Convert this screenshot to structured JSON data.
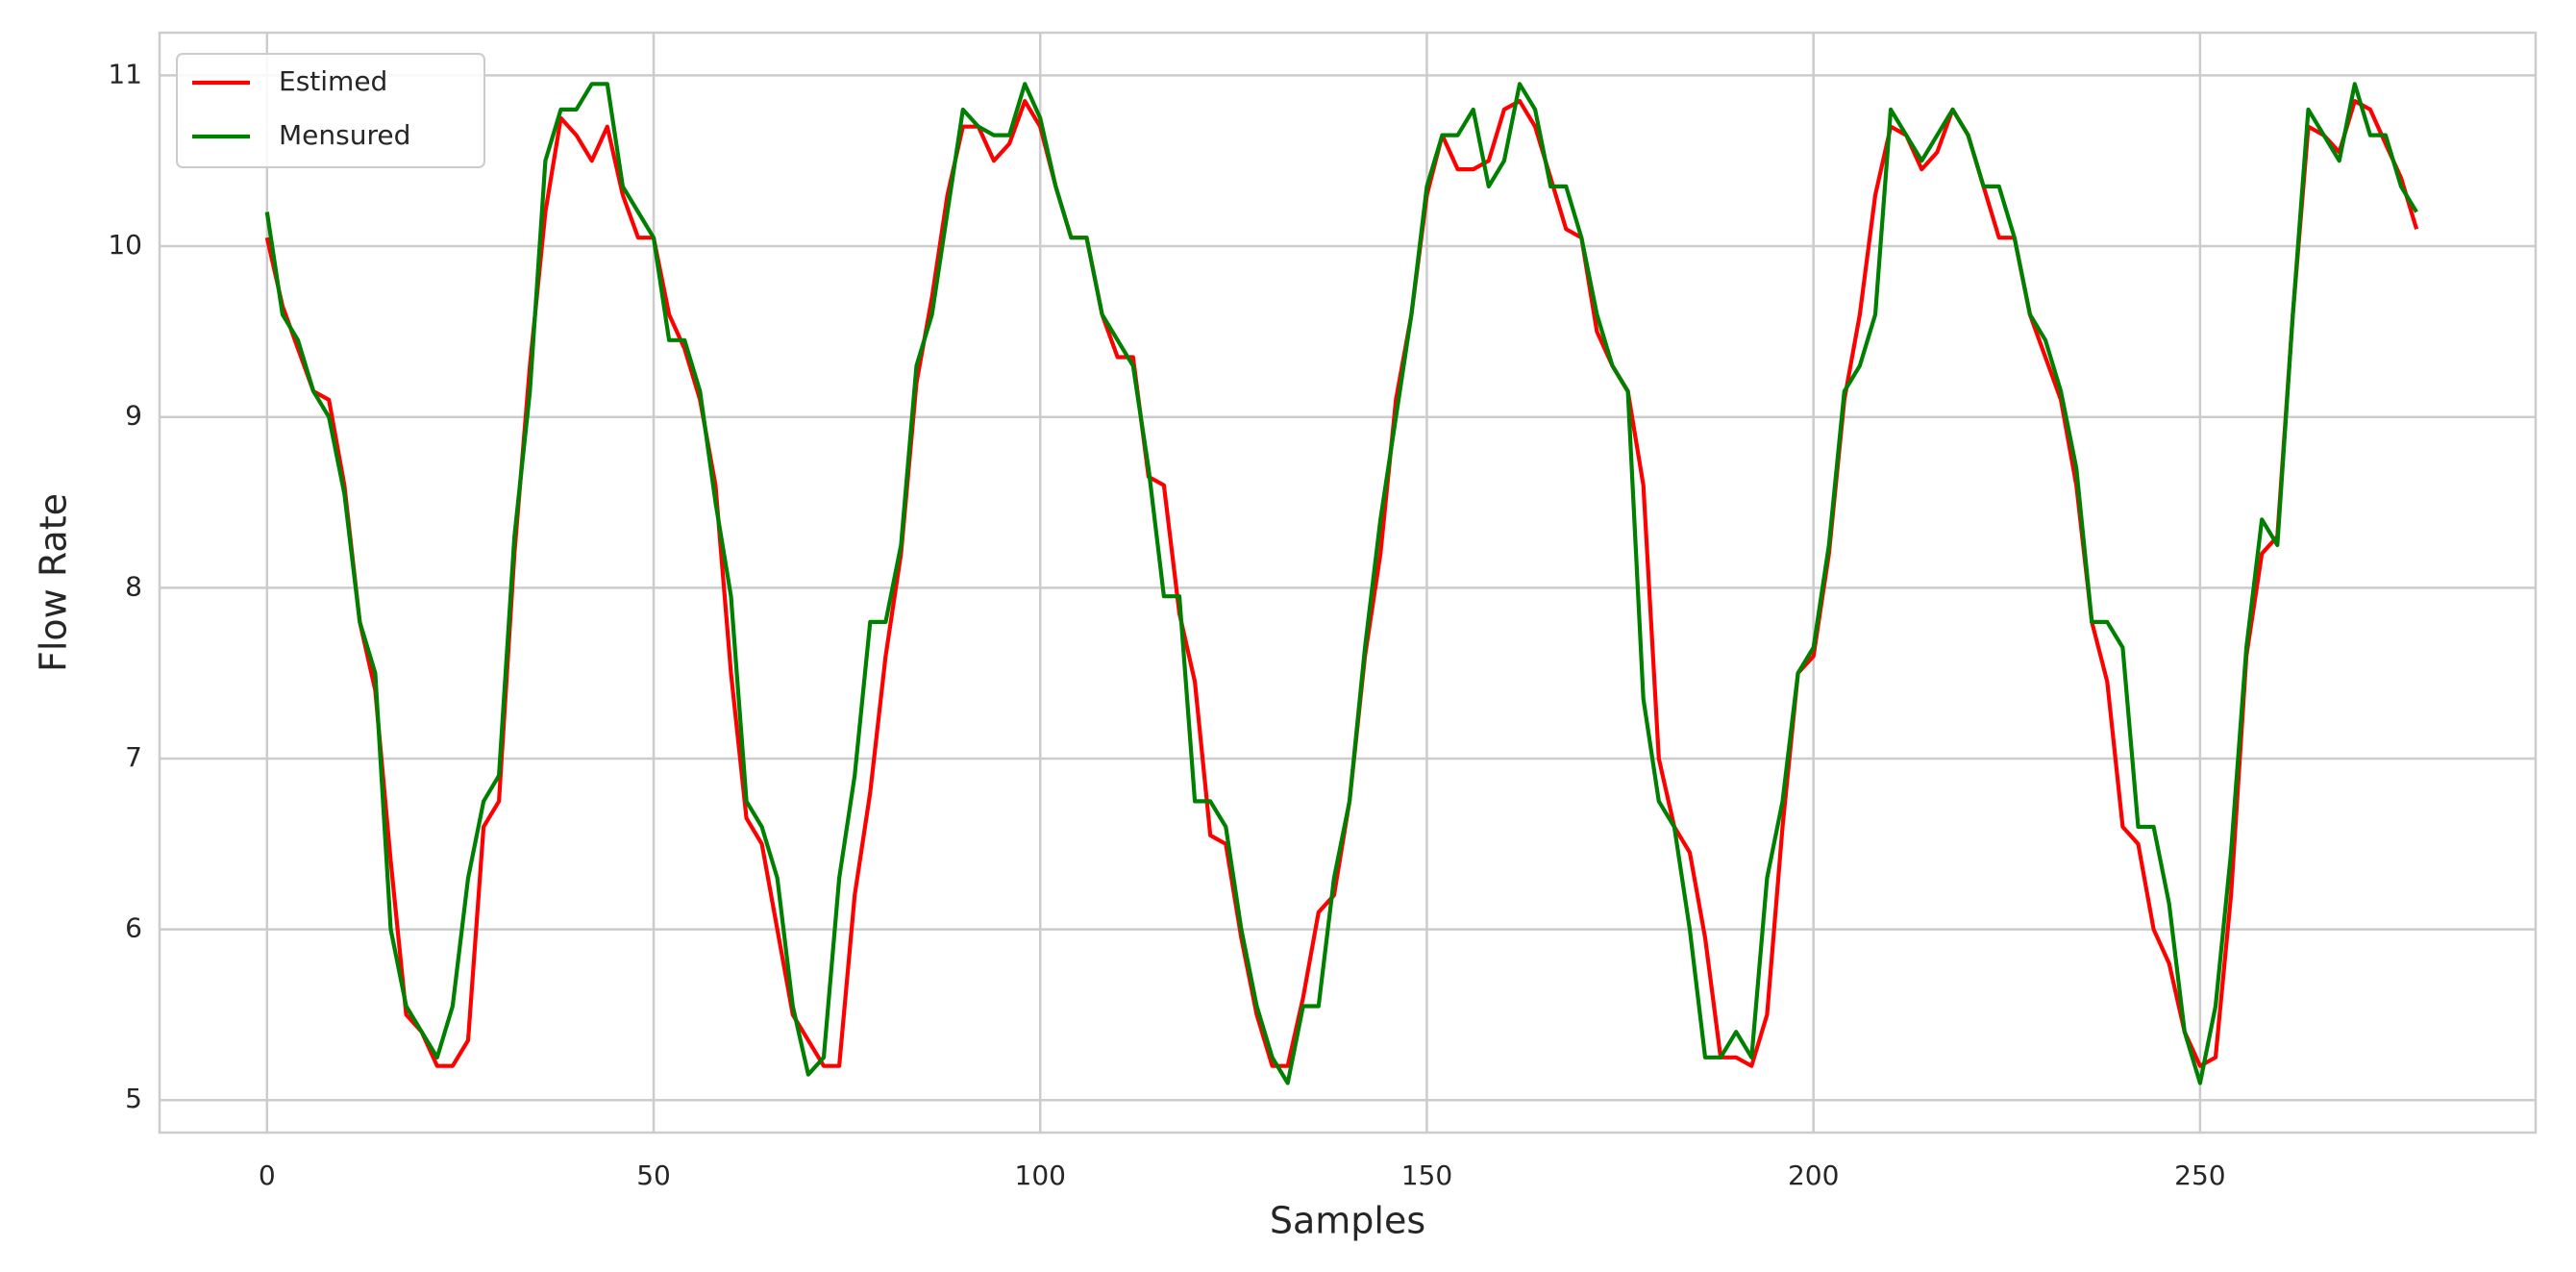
{
  "chart_data": {
    "type": "line",
    "xlabel": "Samples",
    "ylabel": "Flow Rate",
    "x": [
      0,
      2,
      4,
      6,
      8,
      10,
      12,
      14,
      16,
      18,
      20,
      22,
      24,
      26,
      28,
      30,
      32,
      34,
      36,
      38,
      40,
      42,
      44,
      46,
      48,
      50,
      52,
      54,
      56,
      58,
      60,
      62,
      64,
      66,
      68,
      70,
      72,
      74,
      76,
      78,
      80,
      82,
      84,
      86,
      88,
      90,
      92,
      94,
      96,
      98,
      100,
      102,
      104,
      106,
      108,
      110,
      112,
      114,
      116,
      118,
      120,
      122,
      124,
      126,
      128,
      130,
      132,
      134,
      136,
      138,
      140,
      142,
      144,
      146,
      148,
      150,
      152,
      154,
      156,
      158,
      160,
      162,
      164,
      166,
      168,
      170,
      172,
      174,
      176,
      178,
      180,
      182,
      184,
      186,
      188,
      190,
      192,
      194,
      196,
      198,
      200,
      202,
      204,
      206,
      208,
      210,
      212,
      214,
      216,
      218,
      220,
      222,
      224,
      226,
      228,
      230,
      232,
      234,
      236,
      238,
      240,
      242,
      244,
      246,
      248,
      250,
      252,
      254,
      256,
      258,
      260,
      262,
      264,
      266,
      268,
      270,
      272,
      274,
      276,
      278
    ],
    "series": [
      {
        "name": "Estimed",
        "color": "#ff0000",
        "values": [
          10.05,
          9.65,
          9.4,
          9.15,
          9.1,
          8.6,
          7.8,
          7.4,
          6.4,
          5.5,
          5.4,
          5.2,
          5.2,
          5.35,
          6.6,
          6.75,
          8.2,
          9.3,
          10.2,
          10.75,
          10.65,
          10.5,
          10.7,
          10.3,
          10.05,
          10.05,
          9.6,
          9.4,
          9.1,
          8.6,
          7.5,
          6.65,
          6.5,
          6.0,
          5.5,
          5.35,
          5.2,
          5.2,
          6.2,
          6.8,
          7.6,
          8.2,
          9.2,
          9.7,
          10.3,
          10.7,
          10.7,
          10.5,
          10.6,
          10.85,
          10.7,
          10.35,
          10.05,
          10.05,
          9.6,
          9.35,
          9.35,
          8.65,
          8.6,
          7.85,
          7.45,
          6.55,
          6.5,
          5.95,
          5.5,
          5.2,
          5.2,
          5.6,
          6.1,
          6.2,
          6.75,
          7.6,
          8.2,
          9.1,
          9.6,
          10.3,
          10.65,
          10.45,
          10.45,
          10.5,
          10.8,
          10.85,
          10.7,
          10.4,
          10.1,
          10.05,
          9.5,
          9.3,
          9.15,
          8.6,
          7.0,
          6.6,
          6.45,
          5.95,
          5.25,
          5.25,
          5.2,
          5.5,
          6.6,
          7.5,
          7.6,
          8.2,
          9.1,
          9.6,
          10.3,
          10.7,
          10.65,
          10.45,
          10.55,
          10.8,
          10.65,
          10.35,
          10.05,
          10.05,
          9.6,
          9.35,
          9.1,
          8.6,
          7.8,
          7.45,
          6.6,
          6.5,
          6.0,
          5.8,
          5.4,
          5.2,
          5.25,
          6.2,
          7.6,
          8.2,
          8.3,
          9.6,
          10.7,
          10.65,
          10.55,
          10.85,
          10.8,
          10.6,
          10.4,
          10.1
        ]
      },
      {
        "name": "Mensured",
        "color": "#008000",
        "values": [
          10.2,
          9.6,
          9.45,
          9.15,
          9.0,
          8.55,
          7.8,
          7.5,
          6.0,
          5.55,
          5.4,
          5.25,
          5.55,
          6.3,
          6.75,
          6.9,
          8.3,
          9.15,
          10.5,
          10.8,
          10.8,
          10.95,
          10.95,
          10.35,
          10.2,
          10.05,
          9.45,
          9.45,
          9.15,
          8.5,
          7.95,
          6.75,
          6.6,
          6.3,
          5.55,
          5.15,
          5.25,
          6.3,
          6.9,
          7.8,
          7.8,
          8.25,
          9.3,
          9.6,
          10.2,
          10.8,
          10.7,
          10.65,
          10.65,
          10.95,
          10.75,
          10.35,
          10.05,
          10.05,
          9.6,
          9.45,
          9.3,
          8.7,
          7.95,
          7.95,
          6.75,
          6.75,
          6.6,
          6.0,
          5.55,
          5.25,
          5.1,
          5.55,
          5.55,
          6.3,
          6.75,
          7.65,
          8.4,
          9.0,
          9.6,
          10.35,
          10.65,
          10.65,
          10.8,
          10.35,
          10.5,
          10.95,
          10.8,
          10.35,
          10.35,
          10.05,
          9.6,
          9.3,
          9.15,
          7.35,
          6.75,
          6.6,
          6.0,
          5.25,
          5.25,
          5.4,
          5.25,
          6.3,
          6.75,
          7.5,
          7.65,
          8.25,
          9.15,
          9.3,
          9.6,
          10.8,
          10.65,
          10.5,
          10.65,
          10.8,
          10.65,
          10.35,
          10.35,
          10.05,
          9.6,
          9.45,
          9.15,
          8.7,
          7.8,
          7.8,
          7.65,
          6.6,
          6.6,
          6.15,
          5.4,
          5.1,
          5.55,
          6.45,
          7.65,
          8.4,
          8.25,
          9.6,
          10.8,
          10.65,
          10.5,
          10.95,
          10.65,
          10.65,
          10.35,
          10.2
        ]
      }
    ],
    "xlim": [
      -13.9,
      293.4
    ],
    "xticks": [
      0,
      50,
      100,
      150,
      200,
      250
    ],
    "ylim": [
      4.81,
      11.25
    ],
    "yticks": [
      5,
      6,
      7,
      8,
      9,
      10,
      11
    ],
    "grid": true,
    "legend": "upper-left"
  }
}
